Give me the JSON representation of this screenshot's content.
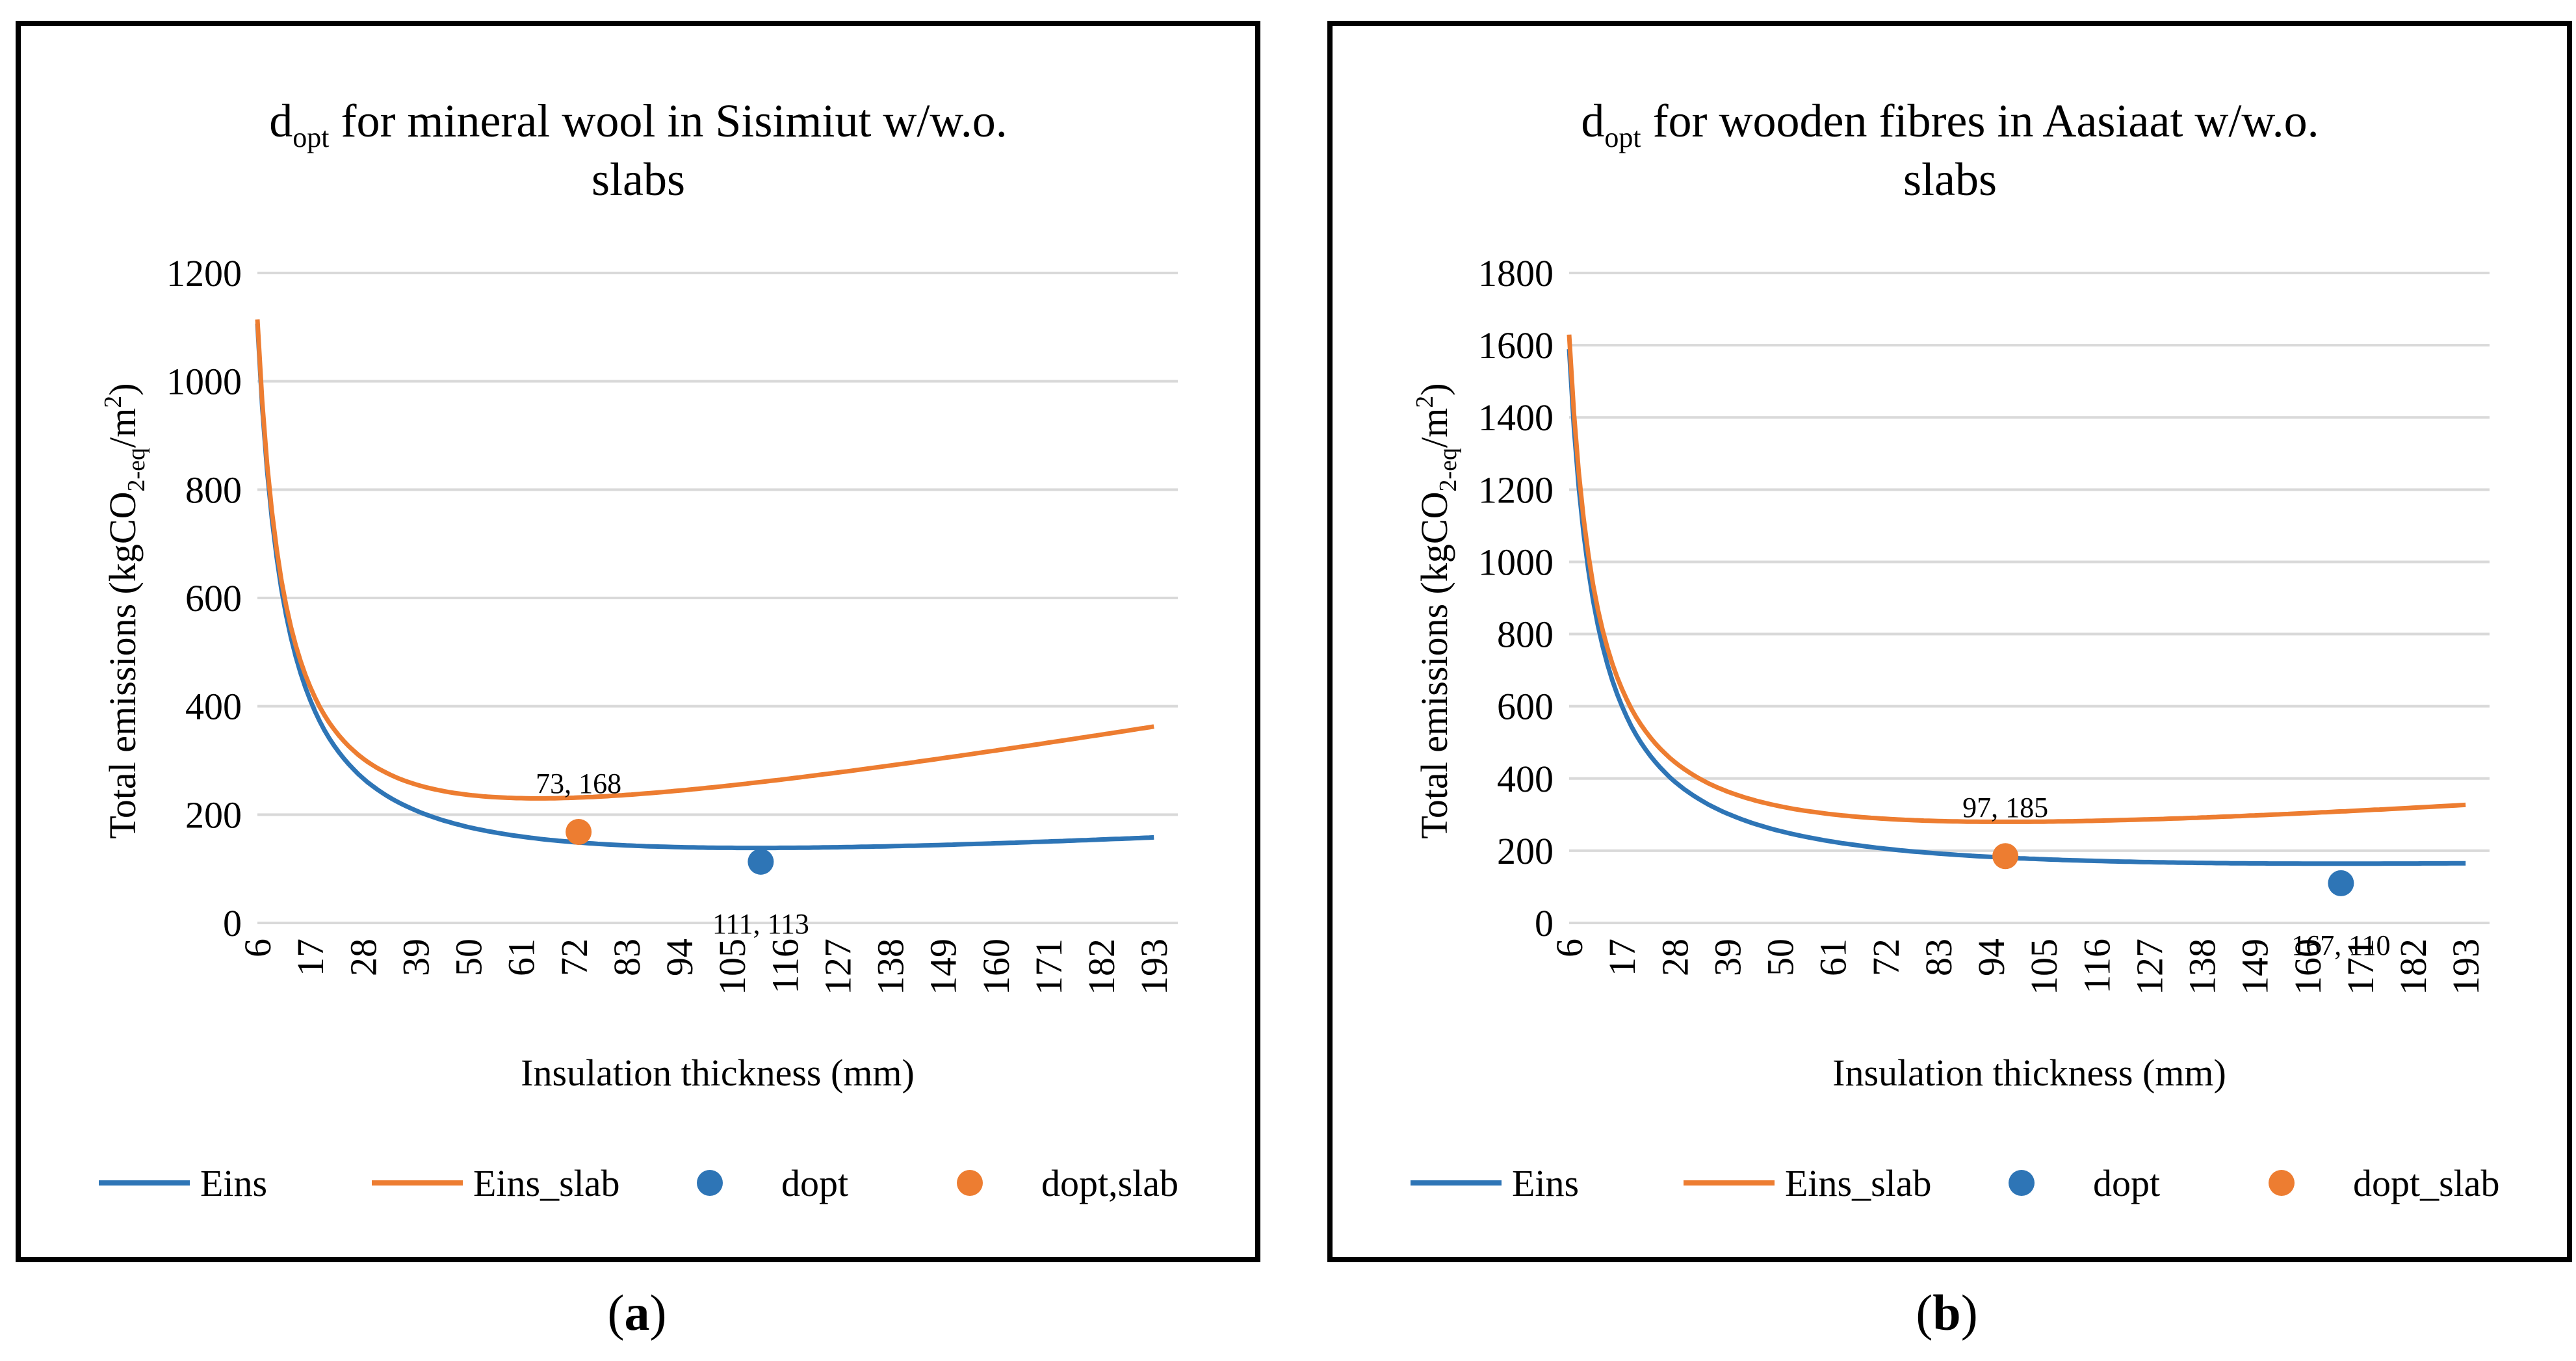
{
  "chart_data": [
    {
      "type": "line",
      "title_main": "d",
      "title_sub": "opt",
      "title_rest": " for mineral wool in Sisimiut w/w.o.",
      "title_line2": "slabs",
      "xlabel": "Insulation thickness (mm)",
      "ylabel_pre": "Total emissions (kgCO",
      "ylabel_sub": "2-eq",
      "ylabel_mid": "/m",
      "ylabel_sup": "2",
      "ylabel_post": ")",
      "ylim": [
        0,
        1200
      ],
      "yticks": [
        "0",
        "200",
        "400",
        "600",
        "800",
        "1000",
        "1200"
      ],
      "xlim": [
        6,
        198
      ],
      "xticks": [
        "6",
        "17",
        "28",
        "39",
        "50",
        "61",
        "72",
        "83",
        "94",
        "105",
        "116",
        "127",
        "138",
        "149",
        "160",
        "171",
        "182",
        "193"
      ],
      "series": [
        {
          "name": "Eins",
          "color": "#2E75B6",
          "a": 6500,
          "b": 0.54,
          "min": 20
        },
        {
          "name": "Eins_slab",
          "color": "#ED7D31",
          "a": 6450,
          "b": 1.55,
          "min": 30
        }
      ],
      "points": [
        {
          "name": "dopt",
          "color": "#2E75B6",
          "x": 111,
          "y": 113,
          "label": "111, 113",
          "label_pos": "below"
        },
        {
          "name": "dopt,slab",
          "color": "#ED7D31",
          "x": 73,
          "y": 168,
          "label": "73, 168",
          "label_pos": "above"
        }
      ],
      "legend": [
        "Eins",
        "Eins_slab",
        "dopt",
        "dopt,slab"
      ],
      "caption": "(a)"
    },
    {
      "type": "line",
      "title_main": "d",
      "title_sub": "opt",
      "title_rest": " for wooden fibres in Aasiaat w/w.o.",
      "title_line2": "slabs",
      "xlabel": "Insulation thickness (mm)",
      "ylabel_pre": "Total emissions (kgCO",
      "ylabel_sub": "2-eq",
      "ylabel_mid": "/m",
      "ylabel_sup": "2",
      "ylabel_post": ")",
      "ylim": [
        0,
        1800
      ],
      "yticks": [
        "0",
        "200",
        "400",
        "600",
        "800",
        "1000",
        "1200",
        "1400",
        "1600",
        "1800"
      ],
      "xlim": [
        6,
        198
      ],
      "xticks": [
        "6",
        "17",
        "28",
        "39",
        "50",
        "61",
        "72",
        "83",
        "94",
        "105",
        "116",
        "127",
        "138",
        "149",
        "160",
        "171",
        "182",
        "193"
      ],
      "series": [
        {
          "name": "Eins",
          "color": "#2E75B6",
          "a": 9200,
          "b": 0.33,
          "min": 54
        },
        {
          "name": "Eins_slab",
          "color": "#ED7D31",
          "a": 9200,
          "b": 0.98,
          "min": 90
        }
      ],
      "points": [
        {
          "name": "dopt",
          "color": "#2E75B6",
          "x": 167,
          "y": 110,
          "label": "167, 110",
          "label_pos": "below"
        },
        {
          "name": "dopt_slab",
          "color": "#ED7D31",
          "x": 97,
          "y": 185,
          "label": "97, 185",
          "label_pos": "above"
        }
      ],
      "legend": [
        "Eins",
        "Eins_slab",
        "dopt",
        "dopt_slab"
      ],
      "caption": "(b)"
    }
  ],
  "captions": {
    "a_open": "(",
    "a_letter": "a",
    "a_close": ")",
    "b_open": "(",
    "b_letter": "b",
    "b_close": ")"
  }
}
